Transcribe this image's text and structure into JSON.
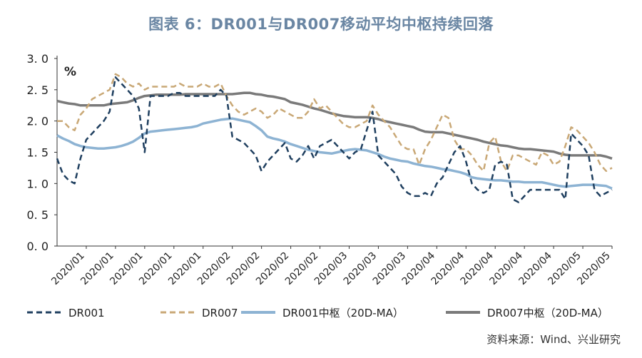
{
  "title": "图表 6：DR001与DR007移动平均中枢持续回落",
  "source": "资料来源：Wind、兴业研究",
  "chart_data": {
    "type": "line",
    "unit": "%",
    "ylim": [
      0,
      3
    ],
    "yticks": [
      "3. 0",
      "2. 5",
      "2. 0",
      "1. 5",
      "1. 0",
      "0. 5",
      "0. 0"
    ],
    "ytick_values": [
      3.0,
      2.5,
      2.0,
      1.5,
      1.0,
      0.5,
      0.0
    ],
    "xtick_labels": [
      "2020/01",
      "2020/01",
      "2020/01",
      "2020/01",
      "2020/01",
      "2020/02",
      "2020/02",
      "2020/02",
      "2020/02",
      "2020/03",
      "2020/03",
      "2020/03",
      "2020/04",
      "2020/04",
      "2020/04",
      "2020/04",
      "2020/04",
      "2020/05",
      "2020/05"
    ],
    "x_count": 96,
    "legend_position": "bottom",
    "series": [
      {
        "name": "DR001",
        "color": "#1f3f5f",
        "style": "dashed",
        "values": [
          1.4,
          1.15,
          1.05,
          1.0,
          1.4,
          1.7,
          1.8,
          1.9,
          2.0,
          2.15,
          2.7,
          2.6,
          2.5,
          2.4,
          2.2,
          1.5,
          2.4,
          2.4,
          2.4,
          2.4,
          2.45,
          2.45,
          2.4,
          2.4,
          2.4,
          2.4,
          2.4,
          2.4,
          2.5,
          2.4,
          1.75,
          1.7,
          1.65,
          1.55,
          1.45,
          1.2,
          1.35,
          1.45,
          1.55,
          1.65,
          1.4,
          1.35,
          1.45,
          1.6,
          1.4,
          1.6,
          1.65,
          1.7,
          1.6,
          1.5,
          1.4,
          1.5,
          1.55,
          1.85,
          2.15,
          1.45,
          1.35,
          1.25,
          1.15,
          0.95,
          0.85,
          0.8,
          0.8,
          0.85,
          0.8,
          1.0,
          1.1,
          1.3,
          1.5,
          1.6,
          1.35,
          1.0,
          0.9,
          0.85,
          0.9,
          1.3,
          1.35,
          1.3,
          0.75,
          0.7,
          0.8,
          0.9,
          0.9,
          0.9,
          0.9,
          0.9,
          0.9,
          0.75,
          1.8,
          1.7,
          1.6,
          1.45,
          0.9,
          0.8,
          0.85,
          0.9
        ]
      },
      {
        "name": "DR007",
        "color": "#c9a876",
        "style": "dashed",
        "values": [
          2.0,
          2.0,
          1.9,
          1.85,
          2.1,
          2.2,
          2.35,
          2.4,
          2.45,
          2.5,
          2.75,
          2.7,
          2.6,
          2.55,
          2.6,
          2.5,
          2.55,
          2.55,
          2.55,
          2.55,
          2.55,
          2.6,
          2.55,
          2.55,
          2.55,
          2.6,
          2.55,
          2.55,
          2.6,
          2.4,
          2.25,
          2.15,
          2.1,
          2.15,
          2.2,
          2.15,
          2.05,
          2.1,
          2.2,
          2.15,
          2.1,
          2.05,
          2.05,
          2.15,
          2.35,
          2.2,
          2.25,
          2.15,
          2.05,
          1.95,
          1.9,
          1.9,
          1.95,
          2.0,
          2.25,
          2.1,
          2.0,
          1.9,
          1.75,
          1.6,
          1.55,
          1.55,
          1.3,
          1.55,
          1.7,
          1.9,
          2.1,
          2.05,
          1.7,
          1.55,
          1.55,
          1.45,
          1.3,
          1.2,
          1.65,
          1.75,
          1.35,
          1.2,
          1.45,
          1.45,
          1.4,
          1.35,
          1.3,
          1.5,
          1.45,
          1.3,
          1.35,
          1.6,
          1.9,
          1.85,
          1.75,
          1.65,
          1.5,
          1.3,
          1.2,
          1.25
        ]
      },
      {
        "name": "DR001中枢（20D-MA）",
        "color": "#8db3d3",
        "style": "solid",
        "values": [
          1.77,
          1.72,
          1.68,
          1.63,
          1.6,
          1.58,
          1.57,
          1.56,
          1.56,
          1.57,
          1.58,
          1.6,
          1.63,
          1.67,
          1.73,
          1.8,
          1.83,
          1.84,
          1.85,
          1.86,
          1.87,
          1.88,
          1.89,
          1.9,
          1.92,
          1.96,
          1.98,
          2.0,
          2.02,
          2.03,
          2.04,
          2.02,
          2.0,
          1.98,
          1.92,
          1.85,
          1.75,
          1.72,
          1.7,
          1.67,
          1.63,
          1.6,
          1.57,
          1.54,
          1.52,
          1.5,
          1.49,
          1.48,
          1.5,
          1.52,
          1.54,
          1.55,
          1.54,
          1.53,
          1.5,
          1.47,
          1.43,
          1.4,
          1.38,
          1.36,
          1.35,
          1.32,
          1.3,
          1.28,
          1.27,
          1.25,
          1.23,
          1.22,
          1.2,
          1.18,
          1.15,
          1.1,
          1.08,
          1.07,
          1.06,
          1.05,
          1.05,
          1.04,
          1.03,
          1.03,
          1.02,
          1.02,
          1.02,
          1.02,
          1.0,
          0.98,
          0.96,
          0.95,
          0.96,
          0.97,
          0.98,
          0.98,
          0.98,
          0.97,
          0.96,
          0.92
        ]
      },
      {
        "name": "DR007中枢（20D-MA）",
        "color": "#7a7a7a",
        "style": "solid",
        "values": [
          2.32,
          2.3,
          2.28,
          2.27,
          2.25,
          2.25,
          2.25,
          2.25,
          2.25,
          2.27,
          2.28,
          2.29,
          2.3,
          2.33,
          2.37,
          2.4,
          2.41,
          2.42,
          2.42,
          2.42,
          2.42,
          2.42,
          2.43,
          2.43,
          2.43,
          2.43,
          2.43,
          2.43,
          2.43,
          2.43,
          2.43,
          2.44,
          2.45,
          2.45,
          2.43,
          2.42,
          2.4,
          2.39,
          2.37,
          2.35,
          2.3,
          2.28,
          2.26,
          2.23,
          2.2,
          2.18,
          2.15,
          2.12,
          2.1,
          2.08,
          2.07,
          2.06,
          2.06,
          2.06,
          2.05,
          2.03,
          2.0,
          1.98,
          1.96,
          1.94,
          1.92,
          1.9,
          1.86,
          1.83,
          1.82,
          1.82,
          1.82,
          1.8,
          1.78,
          1.76,
          1.74,
          1.72,
          1.7,
          1.67,
          1.65,
          1.63,
          1.61,
          1.6,
          1.58,
          1.56,
          1.55,
          1.55,
          1.54,
          1.53,
          1.52,
          1.51,
          1.48,
          1.46,
          1.45,
          1.45,
          1.45,
          1.45,
          1.45,
          1.45,
          1.43,
          1.4
        ]
      }
    ]
  }
}
